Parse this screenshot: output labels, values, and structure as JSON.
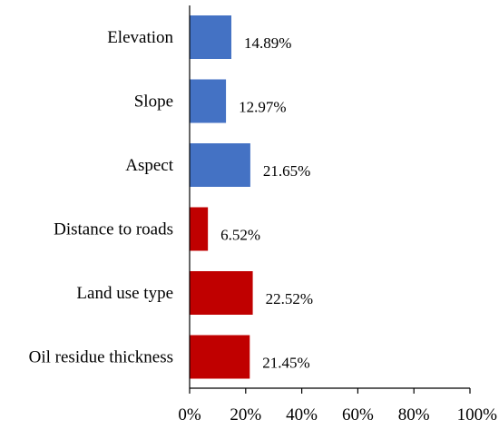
{
  "chart_data": {
    "type": "bar",
    "orientation": "horizontal",
    "categories": [
      "Elevation",
      "Slope",
      "Aspect",
      "Distance to roads",
      "Land use type",
      "Oil residue thickness"
    ],
    "values": [
      14.89,
      12.97,
      21.65,
      6.52,
      22.52,
      21.45
    ],
    "value_labels": [
      "14.89%",
      "12.97%",
      "21.65%",
      "6.52%",
      "22.52%",
      "21.45%"
    ],
    "bar_colors": [
      "#4472C4",
      "#4472C4",
      "#4472C4",
      "#C00000",
      "#C00000",
      "#C00000"
    ],
    "xlim": [
      0,
      100
    ],
    "x_ticks": [
      0,
      20,
      40,
      60,
      80,
      100
    ],
    "x_tick_labels": [
      "0%",
      "20%",
      "40%",
      "60%",
      "80%",
      "100%"
    ],
    "grid": false,
    "legend": "none"
  }
}
